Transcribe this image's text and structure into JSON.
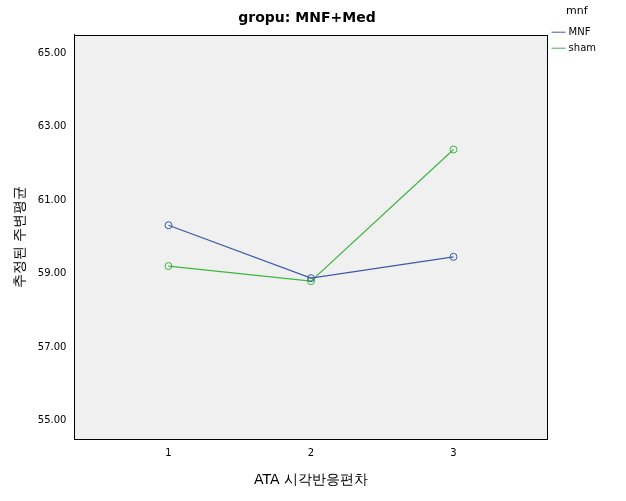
{
  "chart_data": {
    "type": "line",
    "title": "gropu: MNF+Med",
    "x_label": "ATA 시각반응편차",
    "y_label": "추정된 주변평균",
    "legend_title": "mnf",
    "legend": "right",
    "grid": false,
    "marker": "circle",
    "x": [
      1,
      2,
      3
    ],
    "xlim": [
      0.34,
      3.66
    ],
    "xticks": [
      1,
      2,
      3
    ],
    "ylim": [
      54.5,
      65.5
    ],
    "yticks": [
      {
        "value": 55,
        "label": "55.00"
      },
      {
        "value": 57,
        "label": "57.00"
      },
      {
        "value": 59,
        "label": "59.00"
      },
      {
        "value": 61,
        "label": "61.00"
      },
      {
        "value": 63,
        "label": "63.00"
      },
      {
        "value": 65,
        "label": "65.00"
      }
    ],
    "series": [
      {
        "name": "MNF",
        "color": "#3d59ab",
        "values": [
          60.32,
          58.88,
          59.46
        ]
      },
      {
        "name": "sham",
        "color": "#3eb53e",
        "values": [
          59.21,
          58.8,
          62.38
        ]
      }
    ]
  }
}
